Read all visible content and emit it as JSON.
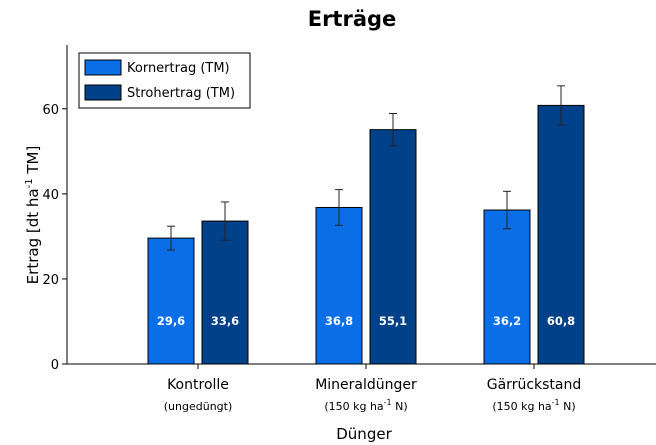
{
  "chart_data": {
    "type": "bar",
    "title": "Erträge",
    "xlabel": "Dünger",
    "ylabel": "Ertrag [dt ha-1 TM]",
    "ylabel_parts": {
      "pre": "Ertrag [dt ha",
      "sup": "-1",
      "post": " TM]"
    },
    "ylim": [
      0,
      75
    ],
    "yticks": [
      0,
      20,
      40,
      60
    ],
    "grid": false,
    "legend_position": "top-left",
    "categories": [
      {
        "label": "Kontrolle",
        "sub_pre": "(ungedüngt)",
        "sub_sup": "",
        "sub_post": ""
      },
      {
        "label": "Mineraldünger",
        "sub_pre": "(150 kg ha",
        "sub_sup": "-1",
        "sub_post": " N)"
      },
      {
        "label": "Gärrückstand",
        "sub_pre": "(150 kg ha",
        "sub_sup": "-1",
        "sub_post": " N)"
      }
    ],
    "series": [
      {
        "name": "Kornertrag (TM)",
        "color": "#0a6fe6",
        "values": [
          29.6,
          36.8,
          36.2
        ],
        "value_labels": [
          "29,6",
          "36,8",
          "36,2"
        ],
        "errors": [
          2.8,
          4.2,
          4.4
        ]
      },
      {
        "name": "Strohertrag (TM)",
        "color": "#01418a",
        "values": [
          33.6,
          55.1,
          60.8
        ],
        "value_labels": [
          "33,6",
          "55,1",
          "60,8"
        ],
        "errors": [
          4.5,
          3.8,
          4.6
        ]
      }
    ]
  }
}
